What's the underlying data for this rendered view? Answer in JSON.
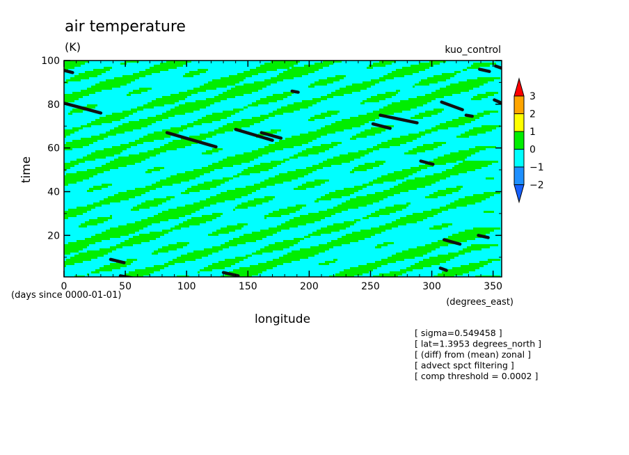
{
  "chart_data": {
    "type": "heatmap",
    "title": "air temperature",
    "units": "(K)",
    "run_label": "kuo_control",
    "xlabel": "longitude",
    "x_units": "(degrees_east)",
    "ylabel": "time",
    "y_units": "(days since 0000-01-01)",
    "xlim": [
      0,
      357
    ],
    "ylim": [
      1,
      100
    ],
    "x_ticks": [
      0,
      50,
      100,
      150,
      200,
      250,
      300,
      350
    ],
    "y_ticks": [
      20,
      40,
      60,
      80,
      100
    ],
    "grid": false,
    "legend_placement": "right",
    "colorbar": {
      "levels": [
        "3",
        "2",
        "1",
        "0",
        "−1",
        "−2"
      ],
      "colors": [
        "#ff0000",
        "#ffa500",
        "#ffff00",
        "#00ee00",
        "#00ffff",
        "#1e90ff",
        "#1560ff"
      ]
    },
    "notes": [
      "[ sigma=0.549458 ]",
      "[ lat=1.3953 degrees_north ]",
      "[ (diff) from (mean) zonal ]",
      "[ advect spct filtering ]",
      "[ comp threshold = 0.0002 ]"
    ],
    "cold_streaks": [
      {
        "x": [
          0,
          7
        ],
        "y": [
          95.5,
          94.5
        ]
      },
      {
        "x": [
          0,
          30
        ],
        "y": [
          80.5,
          76
        ]
      },
      {
        "x": [
          84,
          124
        ],
        "y": [
          67,
          60.5
        ]
      },
      {
        "x": [
          140,
          170
        ],
        "y": [
          68.5,
          63.5
        ]
      },
      {
        "x": [
          161,
          177
        ],
        "y": [
          67,
          64.5
        ]
      },
      {
        "x": [
          186,
          191
        ],
        "y": [
          86,
          85.5
        ]
      },
      {
        "x": [
          252,
          266
        ],
        "y": [
          71,
          69
        ]
      },
      {
        "x": [
          258,
          288
        ],
        "y": [
          75,
          71.5
        ]
      },
      {
        "x": [
          291,
          301
        ],
        "y": [
          54,
          52.5
        ]
      },
      {
        "x": [
          308,
          325
        ],
        "y": [
          81,
          77.5
        ]
      },
      {
        "x": [
          328,
          333
        ],
        "y": [
          75,
          74.5
        ]
      },
      {
        "x": [
          339,
          347
        ],
        "y": [
          96,
          95
        ]
      },
      {
        "x": [
          351,
          357
        ],
        "y": [
          82,
          80.5
        ]
      },
      {
        "x": [
          352,
          357
        ],
        "y": [
          97.5,
          96.5
        ]
      },
      {
        "x": [
          310,
          323
        ],
        "y": [
          18,
          16
        ]
      },
      {
        "x": [
          338,
          346
        ],
        "y": [
          20,
          19
        ]
      },
      {
        "x": [
          307,
          312
        ],
        "y": [
          5,
          4
        ]
      },
      {
        "x": [
          38,
          49
        ],
        "y": [
          9,
          7.5
        ]
      },
      {
        "x": [
          130,
          142
        ],
        "y": [
          3,
          1.5
        ]
      },
      {
        "x": [
          46,
          56
        ],
        "y": [
          1.5,
          0.5
        ]
      }
    ]
  }
}
